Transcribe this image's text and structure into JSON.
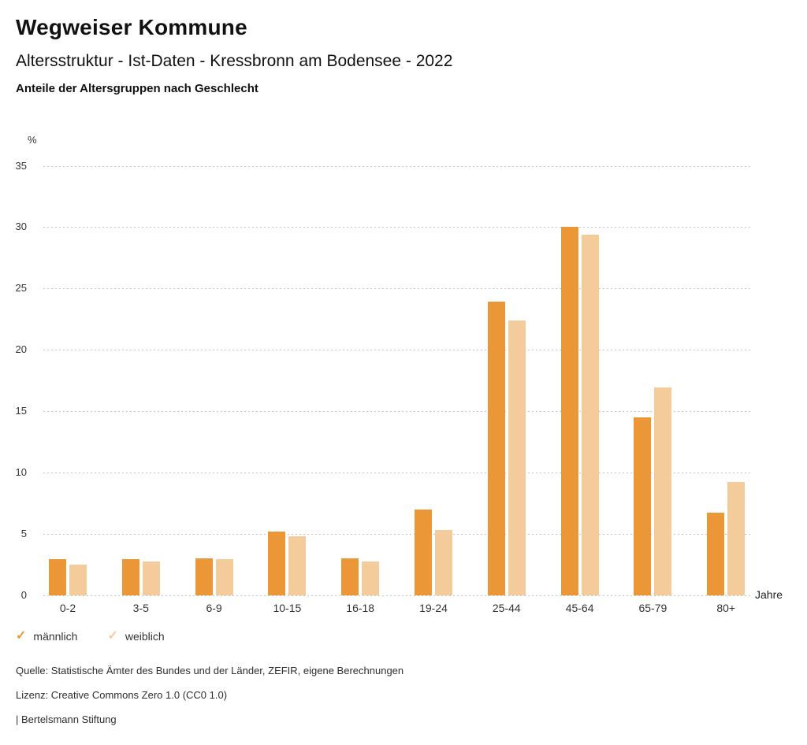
{
  "header": {
    "title": "Wegweiser Kommune",
    "subtitle": "Altersstruktur - Ist-Daten - Kressbronn am Bodensee - 2022",
    "chart_heading": "Anteile der Altersgruppen nach Geschlecht"
  },
  "chart_data": {
    "type": "bar",
    "title": "Anteile der Altersgruppen nach Geschlecht",
    "unit_label": "%",
    "x_unit_label": "Jahre",
    "categories": [
      "0-2",
      "3-5",
      "6-9",
      "10-15",
      "16-18",
      "19-24",
      "25-44",
      "45-64",
      "65-79",
      "80+"
    ],
    "series": [
      {
        "name": "männlich",
        "color": "#EC9737",
        "values": [
          2.9,
          2.9,
          3.0,
          5.2,
          3.0,
          7.0,
          23.9,
          30.0,
          14.5,
          6.7
        ]
      },
      {
        "name": "weiblich",
        "color": "#F4CC9B",
        "values": [
          2.5,
          2.7,
          2.9,
          4.8,
          2.7,
          5.3,
          22.4,
          29.4,
          16.9,
          9.2
        ]
      }
    ],
    "ylim": [
      0,
      35
    ],
    "ytick_step": 5,
    "grid": true,
    "gridline_color": "#c4c4c4",
    "legend_position": "bottom",
    "legend_marker": "check"
  },
  "footer": {
    "source": "Quelle: Statistische Ämter des Bundes und der Länder, ZEFIR, eigene Berechnungen",
    "license": "Lizenz: Creative Commons Zero 1.0 (CC0 1.0)",
    "attribution": "| Bertelsmann Stiftung"
  }
}
